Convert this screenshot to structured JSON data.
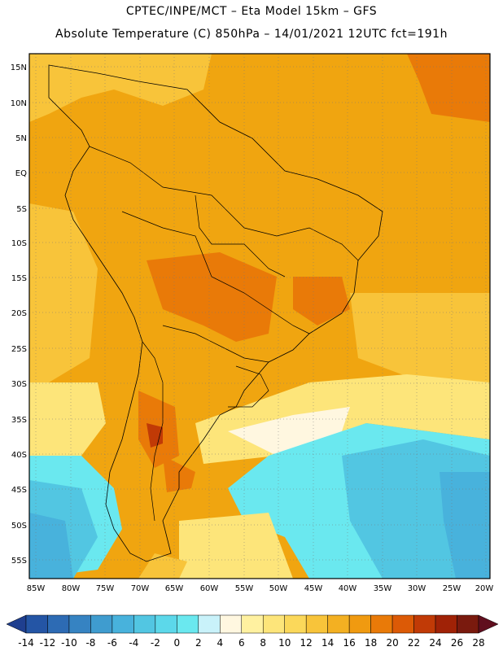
{
  "header": {
    "line1": "CPTEC/INPE/MCT –  Eta Model 15km – GFS",
    "line2": "Absolute Temperature (C) 850hPa – 14/01/2021 12UTC fct=191h"
  },
  "map": {
    "lat_labels": [
      "15N",
      "10N",
      "5N",
      "EQ",
      "5S",
      "10S",
      "15S",
      "20S",
      "25S",
      "30S",
      "35S",
      "40S",
      "45S",
      "50S",
      "55S"
    ],
    "lon_labels": [
      "85W",
      "80W",
      "75W",
      "70W",
      "65W",
      "60W",
      "55W",
      "50W",
      "45W",
      "40W",
      "35W",
      "30W",
      "25W",
      "20W"
    ],
    "base_color": "#f0a510"
  },
  "colorbar": {
    "labels": [
      "-14",
      "-12",
      "-10",
      "-8",
      "-6",
      "-4",
      "-2",
      "0",
      "2",
      "4",
      "6",
      "8",
      "10",
      "12",
      "14",
      "16",
      "18",
      "20",
      "22",
      "24",
      "26",
      "28"
    ],
    "colors": [
      "#1f3f8f",
      "#2455a5",
      "#2d6bb4",
      "#3683c2",
      "#3f9ccf",
      "#48b2dc",
      "#52c6e2",
      "#5cd8ea",
      "#6ae8ef",
      "#c9f2fa",
      "#fff7e0",
      "#fff1a0",
      "#fde57a",
      "#fbd85a",
      "#f8c43a",
      "#f3b022",
      "#f09a10",
      "#e97a08",
      "#dc5a06",
      "#c13a06",
      "#a02206",
      "#7a1a0e",
      "#600e1e"
    ]
  }
}
